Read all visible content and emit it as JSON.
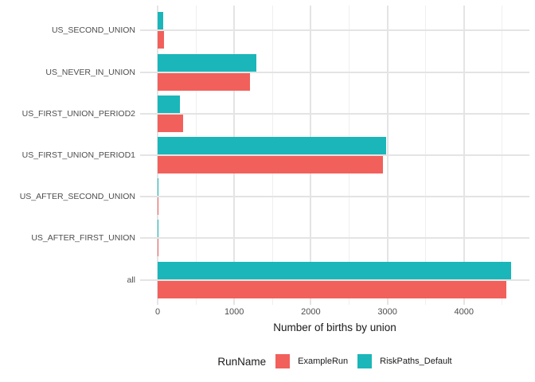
{
  "chart_data": {
    "type": "bar",
    "orientation": "horizontal",
    "title": "",
    "xlabel": "Number of births by union",
    "ylabel": "",
    "categories": [
      "US_SECOND_UNION",
      "US_NEVER_IN_UNION",
      "US_FIRST_UNION_PERIOD2",
      "US_FIRST_UNION_PERIOD1",
      "US_AFTER_SECOND_UNION",
      "US_AFTER_FIRST_UNION",
      "all"
    ],
    "series": [
      {
        "name": "ExampleRun",
        "color": "#F2605C",
        "values": [
          80,
          1210,
          330,
          2940,
          13,
          13,
          4550
        ]
      },
      {
        "name": "RiskPaths_Default",
        "color": "#1BB6B9",
        "values": [
          70,
          1290,
          290,
          2980,
          13,
          13,
          4620
        ]
      }
    ],
    "x_ticks": [
      0,
      1000,
      2000,
      3000,
      4000
    ],
    "x_minor_ticks": [
      500,
      1500,
      2500,
      3500,
      4500
    ],
    "xlim": [
      -229,
      4855
    ],
    "grid": "on",
    "legend": {
      "title": "RunName",
      "position": "bottom"
    }
  },
  "style": {
    "background": "#FFFFFF",
    "grid_major_color": "#E4E4E4",
    "grid_minor_color": "#EFEFEF",
    "axis_text_color": "#4D4D4D",
    "title_text_color": "#1A1A1A"
  }
}
